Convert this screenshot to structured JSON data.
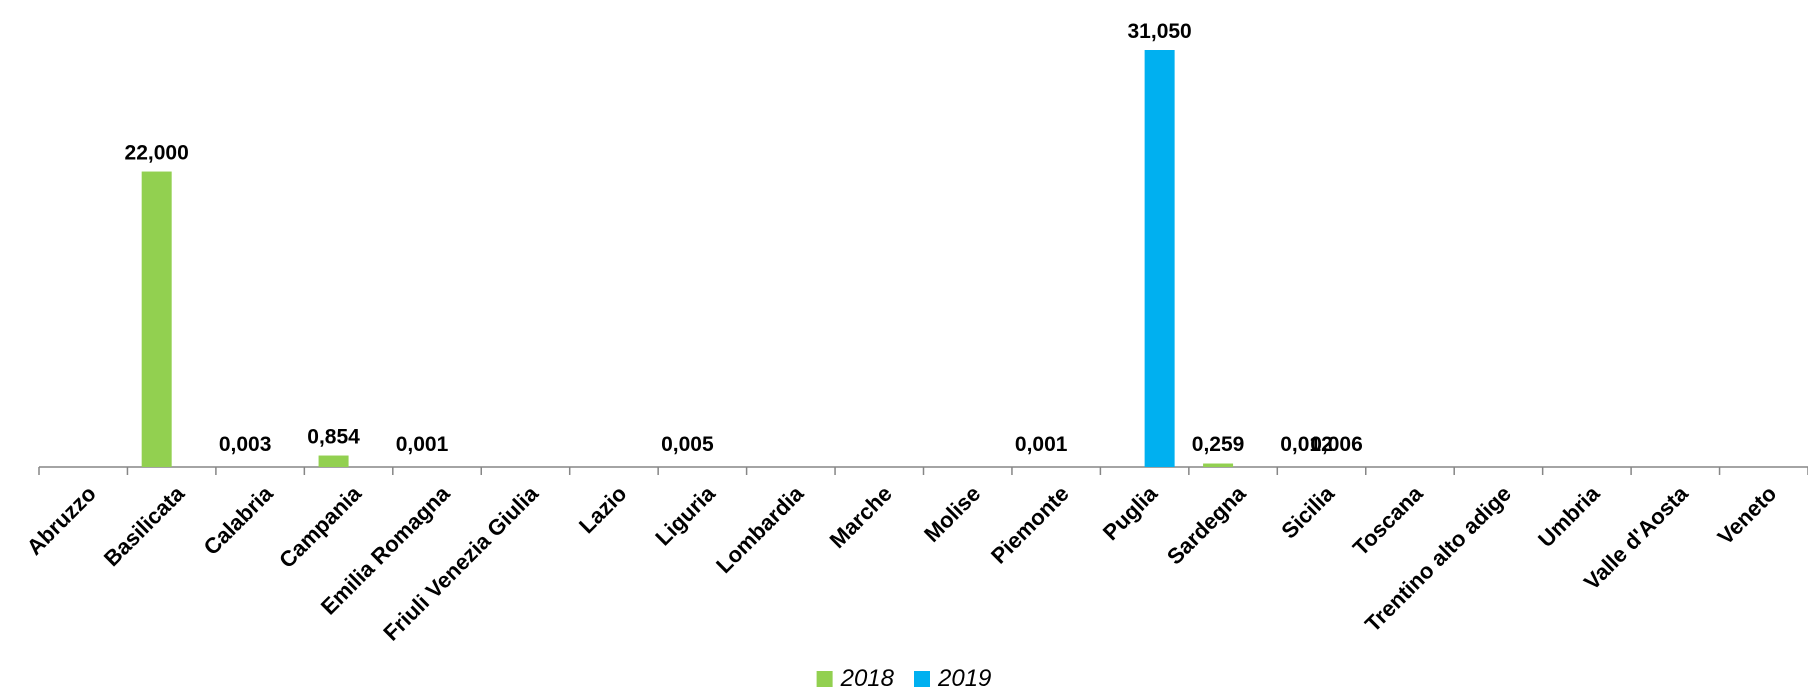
{
  "chart_data": {
    "type": "bar",
    "categories": [
      "Abruzzo",
      "Basilicata",
      "Calabria",
      "Campania",
      "Emilia Romagna",
      "Friuli Venezia Giulia",
      "Lazio",
      "Liguria",
      "Lombardia",
      "Marche",
      "Molise",
      "Piemonte",
      "Puglia",
      "Sardegna",
      "Sicilia",
      "Toscana",
      "Trentino alto adige",
      "Umbria",
      "Valle d'Aosta",
      "Veneto"
    ],
    "series": [
      {
        "name": "2018",
        "color": "#92d050",
        "values": [
          null,
          22.0,
          0.003,
          0.854,
          0.001,
          null,
          null,
          0.005,
          null,
          null,
          null,
          0.001,
          null,
          0.259,
          0.012,
          null,
          null,
          null,
          null,
          null
        ],
        "labels": [
          null,
          "22,000",
          "0,003",
          "0,854",
          "0,001",
          null,
          null,
          "0,005",
          null,
          null,
          null,
          "0,001",
          null,
          "0,259",
          "0,012",
          null,
          null,
          null,
          null,
          null
        ]
      },
      {
        "name": "2019",
        "color": "#00b0f0",
        "values": [
          null,
          null,
          null,
          null,
          null,
          null,
          null,
          null,
          null,
          null,
          null,
          null,
          31.05,
          null,
          0.006,
          null,
          null,
          null,
          null,
          null
        ],
        "labels": [
          null,
          null,
          null,
          null,
          null,
          null,
          null,
          null,
          null,
          null,
          null,
          null,
          "31,050",
          null,
          "0,006",
          null,
          null,
          null,
          null,
          null
        ]
      }
    ],
    "title": "",
    "xlabel": "",
    "ylabel": "",
    "ylim": [
      0,
      31.05
    ],
    "grid": false,
    "legend_position": "bottom"
  }
}
